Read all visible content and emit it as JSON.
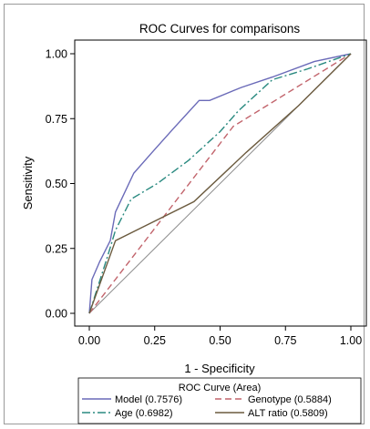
{
  "chart_data": {
    "type": "line",
    "title": "ROC Curves for comparisons",
    "xlabel": "1 - Specificity",
    "ylabel": "Sensitivity",
    "xlim": [
      0,
      1
    ],
    "ylim": [
      0,
      1
    ],
    "xticks": [
      "0.00",
      "0.25",
      "0.50",
      "0.75",
      "1.00"
    ],
    "yticks": [
      "0.00",
      "0.25",
      "0.50",
      "0.75",
      "1.00"
    ],
    "grid": false,
    "legend": {
      "title": "ROC Curve (Area)",
      "placement": "bottom"
    },
    "series": [
      {
        "name": "Model (0.7576)",
        "color": "#6a6ab8",
        "dash": "solid",
        "x": [
          0.0,
          0.01,
          0.04,
          0.08,
          0.1,
          0.17,
          0.24,
          0.32,
          0.42,
          0.46,
          0.58,
          0.7,
          0.86,
          1.0
        ],
        "y": [
          0.0,
          0.13,
          0.2,
          0.28,
          0.39,
          0.54,
          0.62,
          0.71,
          0.82,
          0.82,
          0.87,
          0.91,
          0.97,
          1.0
        ]
      },
      {
        "name": "Genotype (0.5884)",
        "color": "#c2646c",
        "dash": "dashed",
        "x": [
          0.0,
          0.55,
          1.0
        ],
        "y": [
          0.0,
          0.72,
          1.0
        ]
      },
      {
        "name": "Age (0.6982)",
        "color": "#2a8a80",
        "dash": "dashdot",
        "x": [
          0.0,
          0.07,
          0.1,
          0.16,
          0.26,
          0.38,
          0.5,
          0.57,
          0.7,
          0.83,
          1.0
        ],
        "y": [
          0.0,
          0.22,
          0.32,
          0.44,
          0.5,
          0.59,
          0.7,
          0.78,
          0.9,
          0.94,
          1.0
        ]
      },
      {
        "name": "ALT ratio (0.5809)",
        "color": "#6b5a3e",
        "dash": "solid",
        "x": [
          0.0,
          0.1,
          0.4,
          0.6,
          0.8,
          1.0
        ],
        "y": [
          0.0,
          0.28,
          0.43,
          0.62,
          0.8,
          1.0
        ]
      }
    ],
    "reference_line": {
      "x": [
        0,
        1
      ],
      "y": [
        0,
        1
      ],
      "color": "#8a8a8a"
    }
  }
}
